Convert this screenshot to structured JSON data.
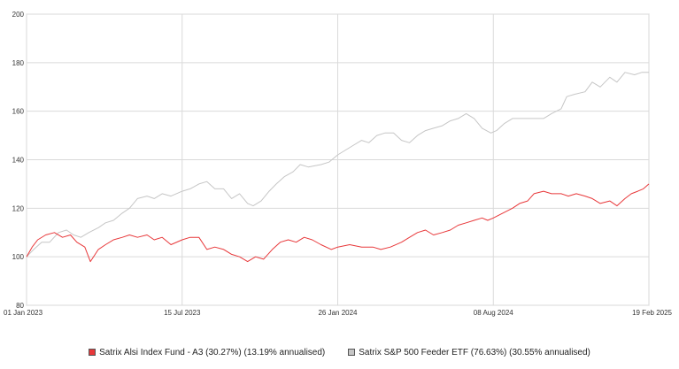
{
  "chart_data": {
    "type": "line",
    "title": "",
    "xlabel": "",
    "ylabel": "",
    "ylim": [
      80,
      200
    ],
    "y_ticks": [
      80,
      100,
      120,
      140,
      160,
      180,
      200
    ],
    "x_ticks": [
      {
        "date": "2023-01-01",
        "label": "01 Jan 2023"
      },
      {
        "date": "2023-07-15",
        "label": "15 Jul 2023"
      },
      {
        "date": "2024-01-26",
        "label": "26 Jan 2024"
      },
      {
        "date": "2024-08-08",
        "label": "08 Aug 2024"
      },
      {
        "date": "2025-02-19",
        "label": "19 Feb 2025"
      }
    ],
    "xlim": [
      "2023-01-01",
      "2025-02-19"
    ],
    "grid": true,
    "legend_position": "bottom",
    "series": [
      {
        "name": "Satrix Alsi Index Fund - A3 (30.27%) (13.19% annualised)",
        "color": "#e8383a",
        "points": [
          [
            "2023-01-01",
            100
          ],
          [
            "2023-01-08",
            104
          ],
          [
            "2023-01-15",
            107
          ],
          [
            "2023-01-25",
            109
          ],
          [
            "2023-02-05",
            110
          ],
          [
            "2023-02-15",
            108
          ],
          [
            "2023-02-25",
            109
          ],
          [
            "2023-03-05",
            106
          ],
          [
            "2023-03-15",
            104
          ],
          [
            "2023-03-22",
            98
          ],
          [
            "2023-04-01",
            103
          ],
          [
            "2023-04-10",
            105
          ],
          [
            "2023-04-20",
            107
          ],
          [
            "2023-05-01",
            108
          ],
          [
            "2023-05-10",
            109
          ],
          [
            "2023-05-20",
            108
          ],
          [
            "2023-06-01",
            109
          ],
          [
            "2023-06-10",
            107
          ],
          [
            "2023-06-20",
            108
          ],
          [
            "2023-07-01",
            105
          ],
          [
            "2023-07-15",
            107
          ],
          [
            "2023-07-25",
            108
          ],
          [
            "2023-08-05",
            108
          ],
          [
            "2023-08-15",
            103
          ],
          [
            "2023-08-25",
            104
          ],
          [
            "2023-09-05",
            103
          ],
          [
            "2023-09-15",
            101
          ],
          [
            "2023-09-25",
            100
          ],
          [
            "2023-10-05",
            98
          ],
          [
            "2023-10-15",
            100
          ],
          [
            "2023-10-25",
            99
          ],
          [
            "2023-11-05",
            103
          ],
          [
            "2023-11-15",
            106
          ],
          [
            "2023-11-25",
            107
          ],
          [
            "2023-12-05",
            106
          ],
          [
            "2023-12-15",
            108
          ],
          [
            "2023-12-25",
            107
          ],
          [
            "2024-01-05",
            105
          ],
          [
            "2024-01-18",
            103
          ],
          [
            "2024-01-26",
            104
          ],
          [
            "2024-02-10",
            105
          ],
          [
            "2024-02-25",
            104
          ],
          [
            "2024-03-10",
            104
          ],
          [
            "2024-03-20",
            103
          ],
          [
            "2024-04-01",
            104
          ],
          [
            "2024-04-15",
            106
          ],
          [
            "2024-04-25",
            108
          ],
          [
            "2024-05-05",
            110
          ],
          [
            "2024-05-15",
            111
          ],
          [
            "2024-05-25",
            109
          ],
          [
            "2024-06-05",
            110
          ],
          [
            "2024-06-15",
            111
          ],
          [
            "2024-06-25",
            113
          ],
          [
            "2024-07-05",
            114
          ],
          [
            "2024-07-15",
            115
          ],
          [
            "2024-07-25",
            116
          ],
          [
            "2024-08-01",
            115
          ],
          [
            "2024-08-08",
            116
          ],
          [
            "2024-08-20",
            118
          ],
          [
            "2024-09-01",
            120
          ],
          [
            "2024-09-10",
            122
          ],
          [
            "2024-09-20",
            123
          ],
          [
            "2024-09-28",
            126
          ],
          [
            "2024-10-10",
            127
          ],
          [
            "2024-10-20",
            126
          ],
          [
            "2024-11-01",
            126
          ],
          [
            "2024-11-10",
            125
          ],
          [
            "2024-11-20",
            126
          ],
          [
            "2024-12-01",
            125
          ],
          [
            "2024-12-10",
            124
          ],
          [
            "2024-12-20",
            122
          ],
          [
            "2025-01-01",
            123
          ],
          [
            "2025-01-10",
            121
          ],
          [
            "2025-01-20",
            124
          ],
          [
            "2025-01-28",
            126
          ],
          [
            "2025-02-05",
            127
          ],
          [
            "2025-02-12",
            128
          ],
          [
            "2025-02-19",
            130
          ]
        ]
      },
      {
        "name": "Satrix S&P 500 Feeder ETF (76.63%) (30.55% annualised)",
        "color": "#c6c6c6",
        "points": [
          [
            "2023-01-01",
            100
          ],
          [
            "2023-01-10",
            103
          ],
          [
            "2023-01-20",
            106
          ],
          [
            "2023-01-30",
            106
          ],
          [
            "2023-02-10",
            110
          ],
          [
            "2023-02-20",
            111
          ],
          [
            "2023-03-01",
            109
          ],
          [
            "2023-03-10",
            108
          ],
          [
            "2023-03-20",
            110
          ],
          [
            "2023-04-01",
            112
          ],
          [
            "2023-04-10",
            114
          ],
          [
            "2023-04-20",
            115
          ],
          [
            "2023-05-01",
            118
          ],
          [
            "2023-05-10",
            120
          ],
          [
            "2023-05-20",
            124
          ],
          [
            "2023-06-01",
            125
          ],
          [
            "2023-06-10",
            124
          ],
          [
            "2023-06-20",
            126
          ],
          [
            "2023-07-01",
            125
          ],
          [
            "2023-07-15",
            127
          ],
          [
            "2023-07-25",
            128
          ],
          [
            "2023-08-05",
            130
          ],
          [
            "2023-08-15",
            131
          ],
          [
            "2023-08-25",
            128
          ],
          [
            "2023-09-05",
            128
          ],
          [
            "2023-09-15",
            124
          ],
          [
            "2023-09-25",
            126
          ],
          [
            "2023-10-05",
            122
          ],
          [
            "2023-10-12",
            121
          ],
          [
            "2023-10-22",
            123
          ],
          [
            "2023-11-01",
            127
          ],
          [
            "2023-11-10",
            130
          ],
          [
            "2023-11-20",
            133
          ],
          [
            "2023-12-01",
            135
          ],
          [
            "2023-12-10",
            138
          ],
          [
            "2023-12-20",
            137
          ],
          [
            "2024-01-05",
            138
          ],
          [
            "2024-01-15",
            139
          ],
          [
            "2024-01-26",
            142
          ],
          [
            "2024-02-05",
            144
          ],
          [
            "2024-02-15",
            146
          ],
          [
            "2024-02-25",
            148
          ],
          [
            "2024-03-05",
            147
          ],
          [
            "2024-03-15",
            150
          ],
          [
            "2024-03-25",
            151
          ],
          [
            "2024-04-05",
            151
          ],
          [
            "2024-04-15",
            148
          ],
          [
            "2024-04-25",
            147
          ],
          [
            "2024-05-05",
            150
          ],
          [
            "2024-05-15",
            152
          ],
          [
            "2024-05-25",
            153
          ],
          [
            "2024-06-05",
            154
          ],
          [
            "2024-06-15",
            156
          ],
          [
            "2024-06-25",
            157
          ],
          [
            "2024-07-05",
            159
          ],
          [
            "2024-07-15",
            157
          ],
          [
            "2024-07-25",
            153
          ],
          [
            "2024-08-05",
            151
          ],
          [
            "2024-08-12",
            152
          ],
          [
            "2024-08-22",
            155
          ],
          [
            "2024-09-01",
            157
          ],
          [
            "2024-09-15",
            157
          ],
          [
            "2024-09-28",
            157
          ],
          [
            "2024-10-10",
            157
          ],
          [
            "2024-10-20",
            159
          ],
          [
            "2024-11-01",
            161
          ],
          [
            "2024-11-08",
            166
          ],
          [
            "2024-11-18",
            167
          ],
          [
            "2024-12-01",
            168
          ],
          [
            "2024-12-10",
            172
          ],
          [
            "2024-12-20",
            170
          ],
          [
            "2025-01-01",
            174
          ],
          [
            "2025-01-10",
            172
          ],
          [
            "2025-01-20",
            176
          ],
          [
            "2025-02-01",
            175
          ],
          [
            "2025-02-10",
            176
          ],
          [
            "2025-02-19",
            176
          ]
        ]
      }
    ]
  }
}
